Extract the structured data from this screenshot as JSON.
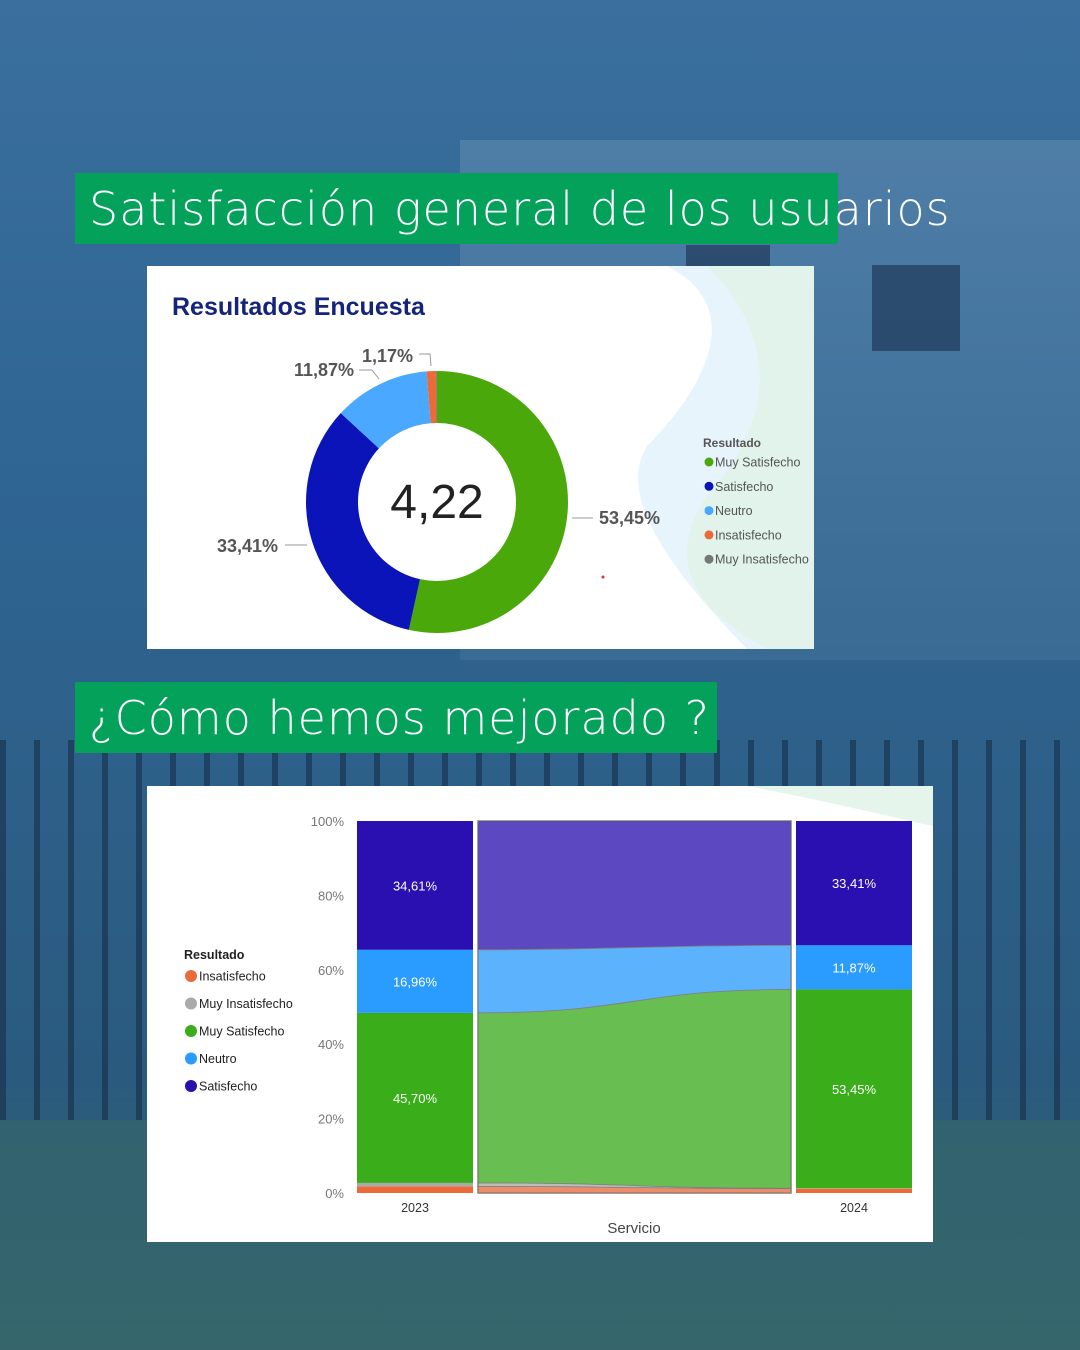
{
  "headings": {
    "satisfaction": "Satisfacción general de los usuarios",
    "improvement": "¿Cómo hemos mejorado ?"
  },
  "chart_data": [
    {
      "type": "pie",
      "subtype": "donut",
      "title": "Resultados Encuesta",
      "center_value": "4,22",
      "legend_title": "Resultado",
      "legend_position": "right",
      "legend": [
        {
          "label": "Muy Satisfecho",
          "color": "#4aa80a"
        },
        {
          "label": "Satisfecho",
          "color": "#0a14b8"
        },
        {
          "label": "Neutro",
          "color": "#4ba8ff"
        },
        {
          "label": "Insatisfecho",
          "color": "#ea6a3a"
        },
        {
          "label": "Muy Insatisfecho",
          "color": "#777777"
        }
      ],
      "slices": [
        {
          "label": "Muy Satisfecho",
          "value": 53.45,
          "text": "53,45%",
          "color": "#4aa80a"
        },
        {
          "label": "Satisfecho",
          "value": 33.41,
          "text": "33,41%",
          "color": "#0a14b8"
        },
        {
          "label": "Neutro",
          "value": 11.87,
          "text": "11,87%",
          "color": "#4ba8ff"
        },
        {
          "label": "Insatisfecho",
          "value": 1.17,
          "text": "1,17%",
          "color": "#ea6a3a"
        },
        {
          "label": "Muy Insatisfecho",
          "value": 0.1,
          "text": "",
          "color": "#777777"
        }
      ]
    },
    {
      "type": "bar",
      "subtype": "stacked-100-ribbon",
      "title": "",
      "xlabel": "Servicio",
      "ylabel": "",
      "ylim": [
        0,
        100
      ],
      "yticks": [
        "0%",
        "20%",
        "40%",
        "60%",
        "80%",
        "100%"
      ],
      "categories": [
        "2023",
        "2024"
      ],
      "legend_title": "Resultado",
      "legend_position": "left",
      "legend": [
        {
          "label": "Insatisfecho",
          "color": "#ea6a3a"
        },
        {
          "label": "Muy Insatisfecho",
          "color": "#aaaaaa"
        },
        {
          "label": "Muy Satisfecho",
          "color": "#3aad1a"
        },
        {
          "label": "Neutro",
          "color": "#2a9cff"
        },
        {
          "label": "Satisfecho",
          "color": "#2a10b0"
        }
      ],
      "series": [
        {
          "name": "Insatisfecho",
          "color": "#ea6a3a",
          "values": [
            1.8,
            1.17
          ],
          "labels": [
            "",
            ""
          ]
        },
        {
          "name": "Muy Insatisfecho",
          "color": "#aaaaaa",
          "values": [
            0.9,
            0.1
          ],
          "labels": [
            "",
            ""
          ]
        },
        {
          "name": "Muy Satisfecho",
          "color": "#3aad1a",
          "values": [
            45.7,
            53.45
          ],
          "labels": [
            "45,70%",
            "53,45%"
          ]
        },
        {
          "name": "Neutro",
          "color": "#2a9cff",
          "values": [
            16.96,
            11.87
          ],
          "labels": [
            "16,96%",
            "11,87%"
          ]
        },
        {
          "name": "Satisfecho",
          "color": "#2a10b0",
          "values": [
            34.61,
            33.41
          ],
          "labels": [
            "34,61%",
            "33,41%"
          ]
        }
      ]
    }
  ]
}
